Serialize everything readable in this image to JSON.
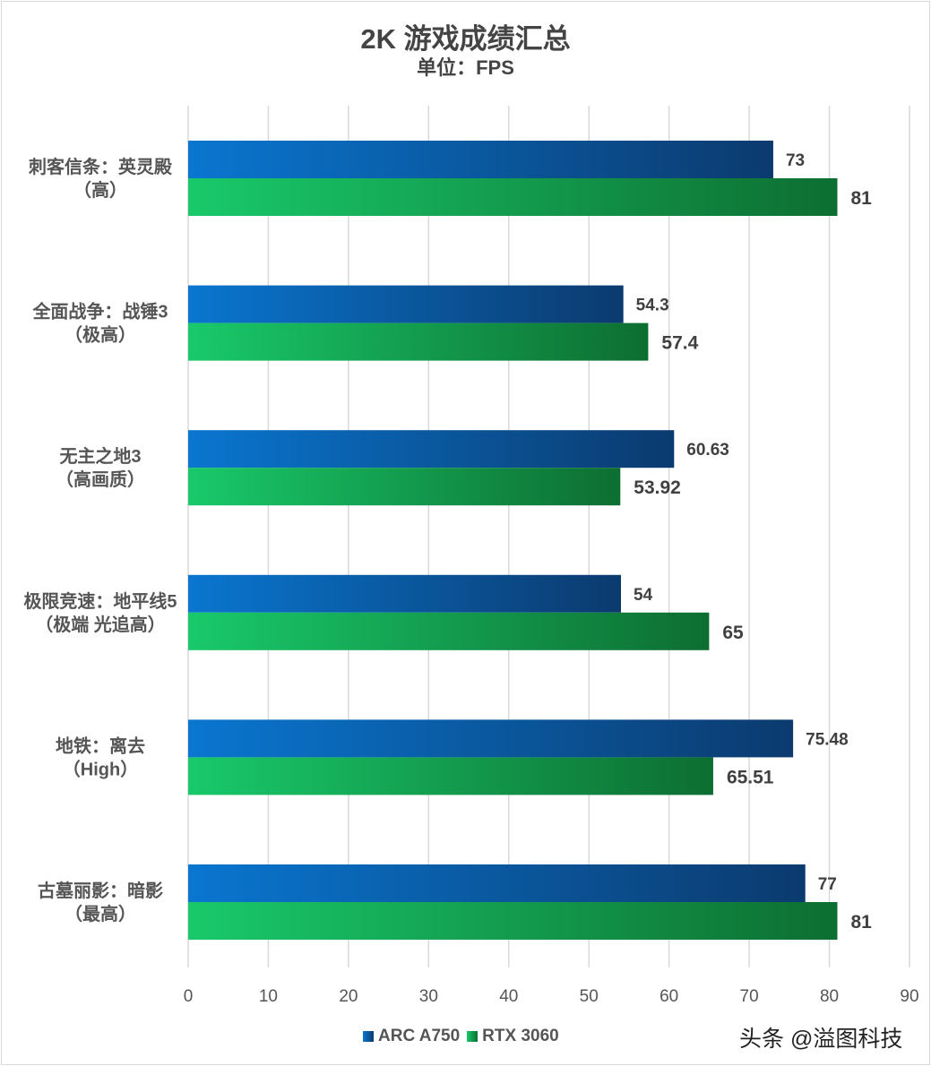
{
  "chart_data": {
    "type": "bar",
    "orientation": "horizontal",
    "title": "2K 游戏成绩汇总",
    "subtitle": "单位：FPS",
    "categories": [
      "刺客信条：英灵殿\n（高）",
      "全面战争：战锤3\n（极高）",
      "无主之地3\n（高画质）",
      "极限竞速：地平线5\n（极端 光追高）",
      "地铁：离去\n（High）",
      "古墓丽影：暗影\n（最高）"
    ],
    "series": [
      {
        "name": "ARC A750",
        "values": [
          73,
          54.3,
          60.63,
          54,
          75.48,
          77
        ],
        "labels": [
          "73",
          "54.3",
          "60.63",
          "54",
          "75.48",
          "77"
        ],
        "color": "#0a76d0",
        "color_end": "#0b3a6e"
      },
      {
        "name": "RTX 3060",
        "values": [
          81,
          57.4,
          53.92,
          65,
          65.51,
          81
        ],
        "labels": [
          "81",
          "57.4",
          "53.92",
          "65",
          "65.51",
          "81"
        ],
        "color": "#19c96a",
        "color_end": "#0d6e32"
      }
    ],
    "xlim": [
      0,
      90
    ],
    "xticks": [
      0,
      10,
      20,
      30,
      40,
      50,
      60,
      70,
      80,
      90
    ],
    "grid": true,
    "legend_position": "bottom"
  },
  "watermark": "头条 @溢图科技"
}
